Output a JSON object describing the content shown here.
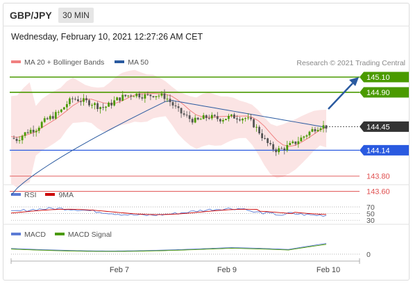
{
  "header": {
    "symbol": "GBP/JPY",
    "interval": "30 MIN"
  },
  "timestamp": "Wednesday, February 10, 2021 12:27:26 AM CET",
  "legend_main": [
    {
      "label": "MA 20 + Bollinger Bands",
      "color": "#f08080"
    },
    {
      "label": "MA 50",
      "color": "#2a5aa0"
    }
  ],
  "copyright": "Research © 2021 Trading Central",
  "colors": {
    "resistance": "#4a9a00",
    "support_blue": "#2a5ae0",
    "support_red": "#e05050",
    "current": "#333333",
    "arrow": "#2a5aa0",
    "bull": "#4a9a00",
    "bear": "#555555"
  },
  "legend_rsi": [
    {
      "label": "RSI",
      "color": "#5b7bd5"
    },
    {
      "label": "9MA",
      "color": "#cc0000"
    }
  ],
  "legend_macd": [
    {
      "label": "MACD",
      "color": "#5b7bd5"
    },
    {
      "label": "MACD Signal",
      "color": "#4a9a00"
    }
  ],
  "chart_data": [
    {
      "type": "candlestick",
      "x_labels": [
        "Feb 7",
        "Feb 9",
        "Feb 10"
      ],
      "price_levels": [
        {
          "value": 145.1,
          "label": "145.10",
          "kind": "resistance"
        },
        {
          "value": 144.9,
          "label": "144.90",
          "kind": "resistance"
        },
        {
          "value": 144.45,
          "label": "144.45",
          "kind": "current"
        },
        {
          "value": 144.14,
          "label": "144.14",
          "kind": "support"
        },
        {
          "value": 143.8,
          "label": "143.80",
          "kind": "support-red"
        },
        {
          "value": 143.6,
          "label": "143.60",
          "kind": "support-red"
        }
      ],
      "close_path": [
        144.3,
        144.28,
        144.35,
        144.4,
        144.42,
        144.5,
        144.55,
        144.6,
        144.65,
        144.75,
        144.82,
        144.8,
        144.78,
        144.76,
        144.72,
        144.7,
        144.74,
        144.8,
        144.84,
        144.86,
        144.88,
        144.86,
        144.85,
        144.87,
        144.86,
        144.84,
        144.75,
        144.66,
        144.6,
        144.55,
        144.52,
        144.56,
        144.58,
        144.56,
        144.55,
        144.57,
        144.58,
        144.57,
        144.56,
        144.5,
        144.4,
        144.28,
        144.18,
        144.14,
        144.16,
        144.2,
        144.24,
        144.3,
        144.36,
        144.42,
        144.46,
        144.45
      ],
      "series": [
        {
          "name": "MA 20 + Bollinger Bands"
        },
        {
          "name": "MA 50"
        }
      ]
    },
    {
      "type": "line",
      "y_ticks": [
        70,
        50,
        30
      ],
      "series": [
        {
          "name": "RSI"
        },
        {
          "name": "9MA"
        }
      ]
    },
    {
      "type": "line",
      "y_ticks": [
        0
      ],
      "series": [
        {
          "name": "MACD"
        },
        {
          "name": "MACD Signal"
        }
      ]
    }
  ]
}
